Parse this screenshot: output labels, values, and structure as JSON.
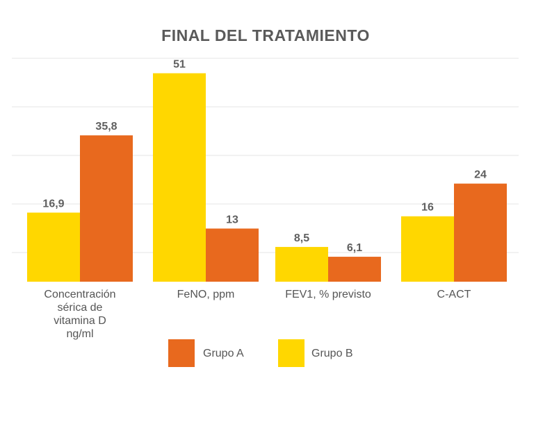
{
  "chart_data": {
    "type": "bar",
    "title": "FINAL DEL TRATAMIENTO",
    "categories": [
      [
        "Concentración",
        "sérica de",
        "vitamina D",
        "ng/ml"
      ],
      [
        "FeNO, ppm"
      ],
      [
        "FEV1, % previsto"
      ],
      [
        "C-ACT"
      ]
    ],
    "series": [
      {
        "name": "Grupo B",
        "color": "#FFD700",
        "values": [
          16.9,
          51,
          8.5,
          16
        ],
        "labels": [
          "16,9",
          "51",
          "8,5",
          "16"
        ]
      },
      {
        "name": "Grupo A",
        "color": "#E8691E",
        "values": [
          35.8,
          13,
          6.1,
          24
        ],
        "labels": [
          "35,8",
          "13",
          "6,1",
          "24"
        ]
      }
    ],
    "legend_order": [
      "Grupo A",
      "Grupo B"
    ],
    "legend_placement": "bottom",
    "ylim": [
      0,
      55
    ],
    "grid": true,
    "gridline_color": "#e6e6e6"
  }
}
